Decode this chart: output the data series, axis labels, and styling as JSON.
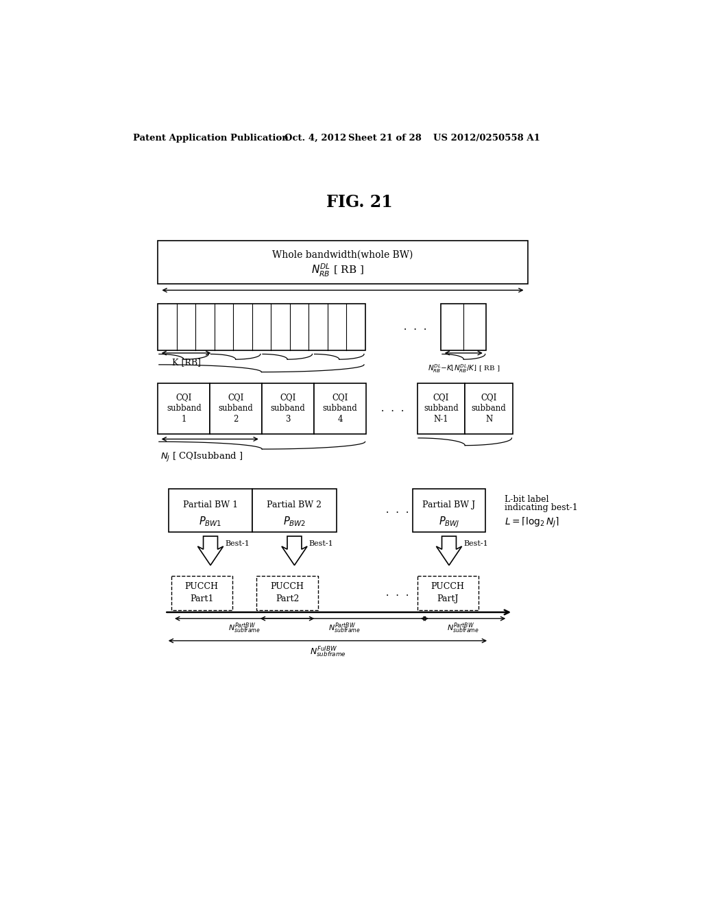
{
  "bg_color": "#ffffff",
  "header_text": "Patent Application Publication",
  "header_date": "Oct. 4, 2012",
  "header_sheet": "Sheet 21 of 28",
  "header_patent": "US 2012/0250558 A1",
  "fig_title": "FIG. 21",
  "box1_label": "Whole bandwidth(whole BW)",
  "cqi_labels": [
    "CQI\nsubband\n1",
    "CQI\nsubband\n2",
    "CQI\nsubband\n3",
    "CQI\nsubband\n4",
    "CQI\nsubband\nN-1",
    "CQI\nsubband\nN"
  ],
  "partial_bw_labels": [
    "Partial BW 1",
    "Partial BW 2",
    "Partial BW J"
  ],
  "pucch_labels": [
    "PUCCH\nPart1",
    "PUCCH\nPart2",
    "PUCCH\nPartJ"
  ],
  "lbit_line1": "L-bit label",
  "lbit_line2": "indicating best-1"
}
